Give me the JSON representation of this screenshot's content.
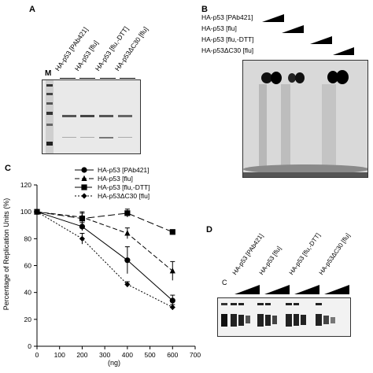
{
  "panels": {
    "a": {
      "letter": "A",
      "marker_label": "M",
      "lanes": [
        "HA-p53 [PAb421]",
        "HA-p53 [flu]",
        "HA-p53 [flu,-DTT]",
        "HA-p53ΔC30 [flu]"
      ]
    },
    "b": {
      "letter": "B",
      "rows": [
        "HA-p53 [PAb421]",
        "HA-p53 [flu]",
        "HA-p53 [flu,-DTT]",
        "HA-p53ΔC30 [flu]"
      ]
    },
    "c": {
      "letter": "C"
    },
    "d": {
      "letter": "D",
      "control_label": "C",
      "lanes": [
        "HA-p53 [PAb421]",
        "HA-p53 [flu]",
        "HA-p53 [flu,-DTT]",
        "HA-p53ΔC30 [flu]"
      ]
    }
  },
  "chart_data": {
    "type": "line",
    "xlabel": "(ng)",
    "ylabel": "Percentage of Replication Units (%)",
    "xlim": [
      0,
      700
    ],
    "ylim": [
      0,
      120
    ],
    "xticks": [
      0,
      100,
      200,
      300,
      400,
      500,
      600,
      700
    ],
    "yticks": [
      0,
      20,
      40,
      60,
      80,
      100,
      120
    ],
    "grid": false,
    "legend_position": "top-center",
    "x": [
      0,
      200,
      400,
      600
    ],
    "series": [
      {
        "name": "HA-p53 [PAb421]",
        "marker": "circle",
        "line": "solid",
        "values": [
          100,
          89,
          64,
          34
        ],
        "errors": [
          0,
          3,
          10,
          4
        ]
      },
      {
        "name": "HA-p53 [flu]",
        "marker": "triangle",
        "line": "dash",
        "values": [
          100,
          96,
          84,
          56
        ],
        "errors": [
          0,
          3,
          4,
          7
        ]
      },
      {
        "name": "HA-p53 [flu,-DTT]",
        "marker": "square",
        "line": "longdash",
        "values": [
          100,
          95,
          99,
          85
        ],
        "errors": [
          0,
          5,
          3,
          0
        ]
      },
      {
        "name": "HA-p53ΔC30 [flu]",
        "marker": "diamond",
        "line": "dot",
        "values": [
          100,
          80,
          46,
          29
        ],
        "errors": [
          0,
          4,
          2,
          2
        ]
      }
    ]
  }
}
